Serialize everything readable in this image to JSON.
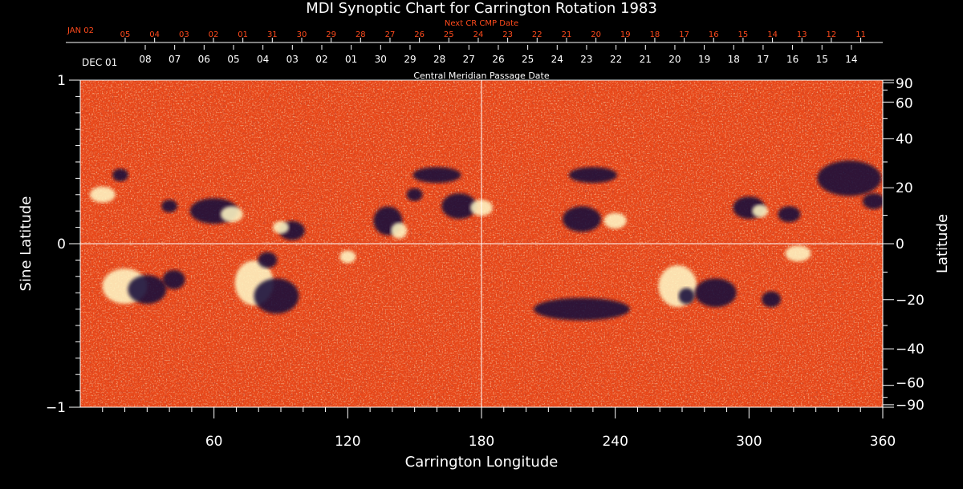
{
  "chart_data": {
    "type": "heatmap",
    "title": "MDI Synoptic Chart for Carrington Rotation 1983",
    "xlabel": "Carrington Longitude",
    "ylabel_left": "Sine Latitude",
    "ylabel_right": "Latitude",
    "xlim": [
      0,
      360
    ],
    "ylim": [
      -1,
      1
    ],
    "x_ticks": [
      60,
      120,
      180,
      240,
      300,
      360
    ],
    "y_left_ticks": [
      {
        "value": 1,
        "label": "1"
      },
      {
        "value": 0,
        "label": "0"
      },
      {
        "value": -1,
        "label": "−1"
      }
    ],
    "y_right_ticks": [
      90,
      60,
      40,
      20,
      0,
      -20,
      -40,
      -60,
      -90
    ],
    "cmp_axis_title": "Central Meridian Passage Date",
    "cmp_start_label": "DEC 01",
    "cmp_dates": [
      "08",
      "07",
      "06",
      "05",
      "04",
      "03",
      "02",
      "01",
      "30",
      "29",
      "28",
      "27",
      "26",
      "25",
      "24",
      "23",
      "22",
      "21",
      "20",
      "19",
      "18",
      "17",
      "16",
      "15",
      "14"
    ],
    "next_cr_axis_title": "Next CR CMP Date",
    "next_cr_start_label": "JAN 02",
    "next_cr_dates": [
      "05",
      "04",
      "03",
      "02",
      "01",
      "31",
      "30",
      "29",
      "28",
      "27",
      "26",
      "25",
      "24",
      "23",
      "22",
      "21",
      "20",
      "19",
      "18",
      "17",
      "16",
      "15",
      "14",
      "13",
      "12",
      "11"
    ],
    "crosshair": {
      "longitude": 180,
      "sine_latitude": 0
    },
    "colors": {
      "background": "#000000",
      "field": "#e8481a",
      "positive": "#fff3b0",
      "negative": "#1a1240"
    }
  }
}
